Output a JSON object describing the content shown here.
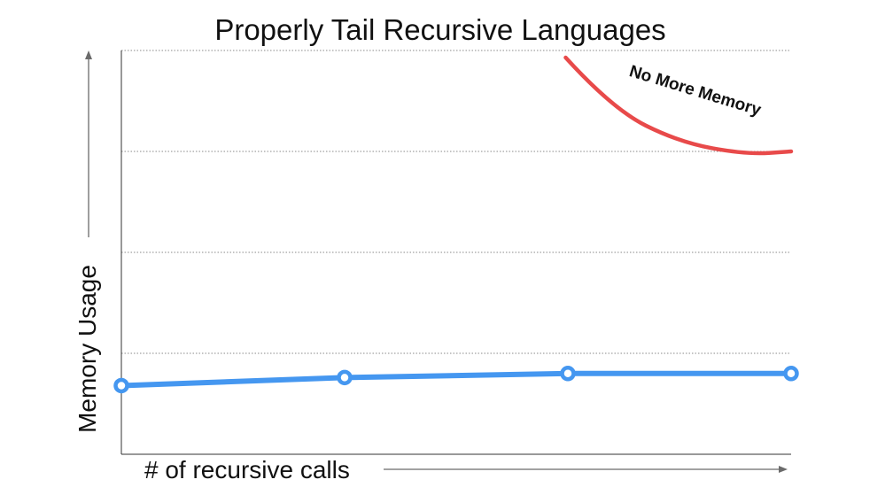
{
  "chart_data": {
    "type": "line",
    "title": "Properly Tail Recursive Languages",
    "xlabel": "# of recursive calls",
    "ylabel": "Memory Usage",
    "x": [
      0,
      1,
      2,
      3
    ],
    "xlim": [
      0,
      3
    ],
    "ylim": [
      0,
      4
    ],
    "gridlines_y": [
      1,
      2,
      3,
      4
    ],
    "grid": "horizontal dotted",
    "series": [
      {
        "values": [
          0.68,
          0.76,
          0.8,
          0.8
        ],
        "color": "#4597f0",
        "marker": "open-circle"
      }
    ],
    "annotations": [
      {
        "text": "No More Memory",
        "color": "#111111",
        "curve_color": "#e84a4a",
        "curve_points": [
          [
            1.99,
            3.93
          ],
          [
            2.2,
            3.42
          ],
          [
            2.5,
            3.09
          ],
          [
            2.8,
            2.97
          ],
          [
            3.0,
            3.0
          ]
        ]
      }
    ]
  }
}
